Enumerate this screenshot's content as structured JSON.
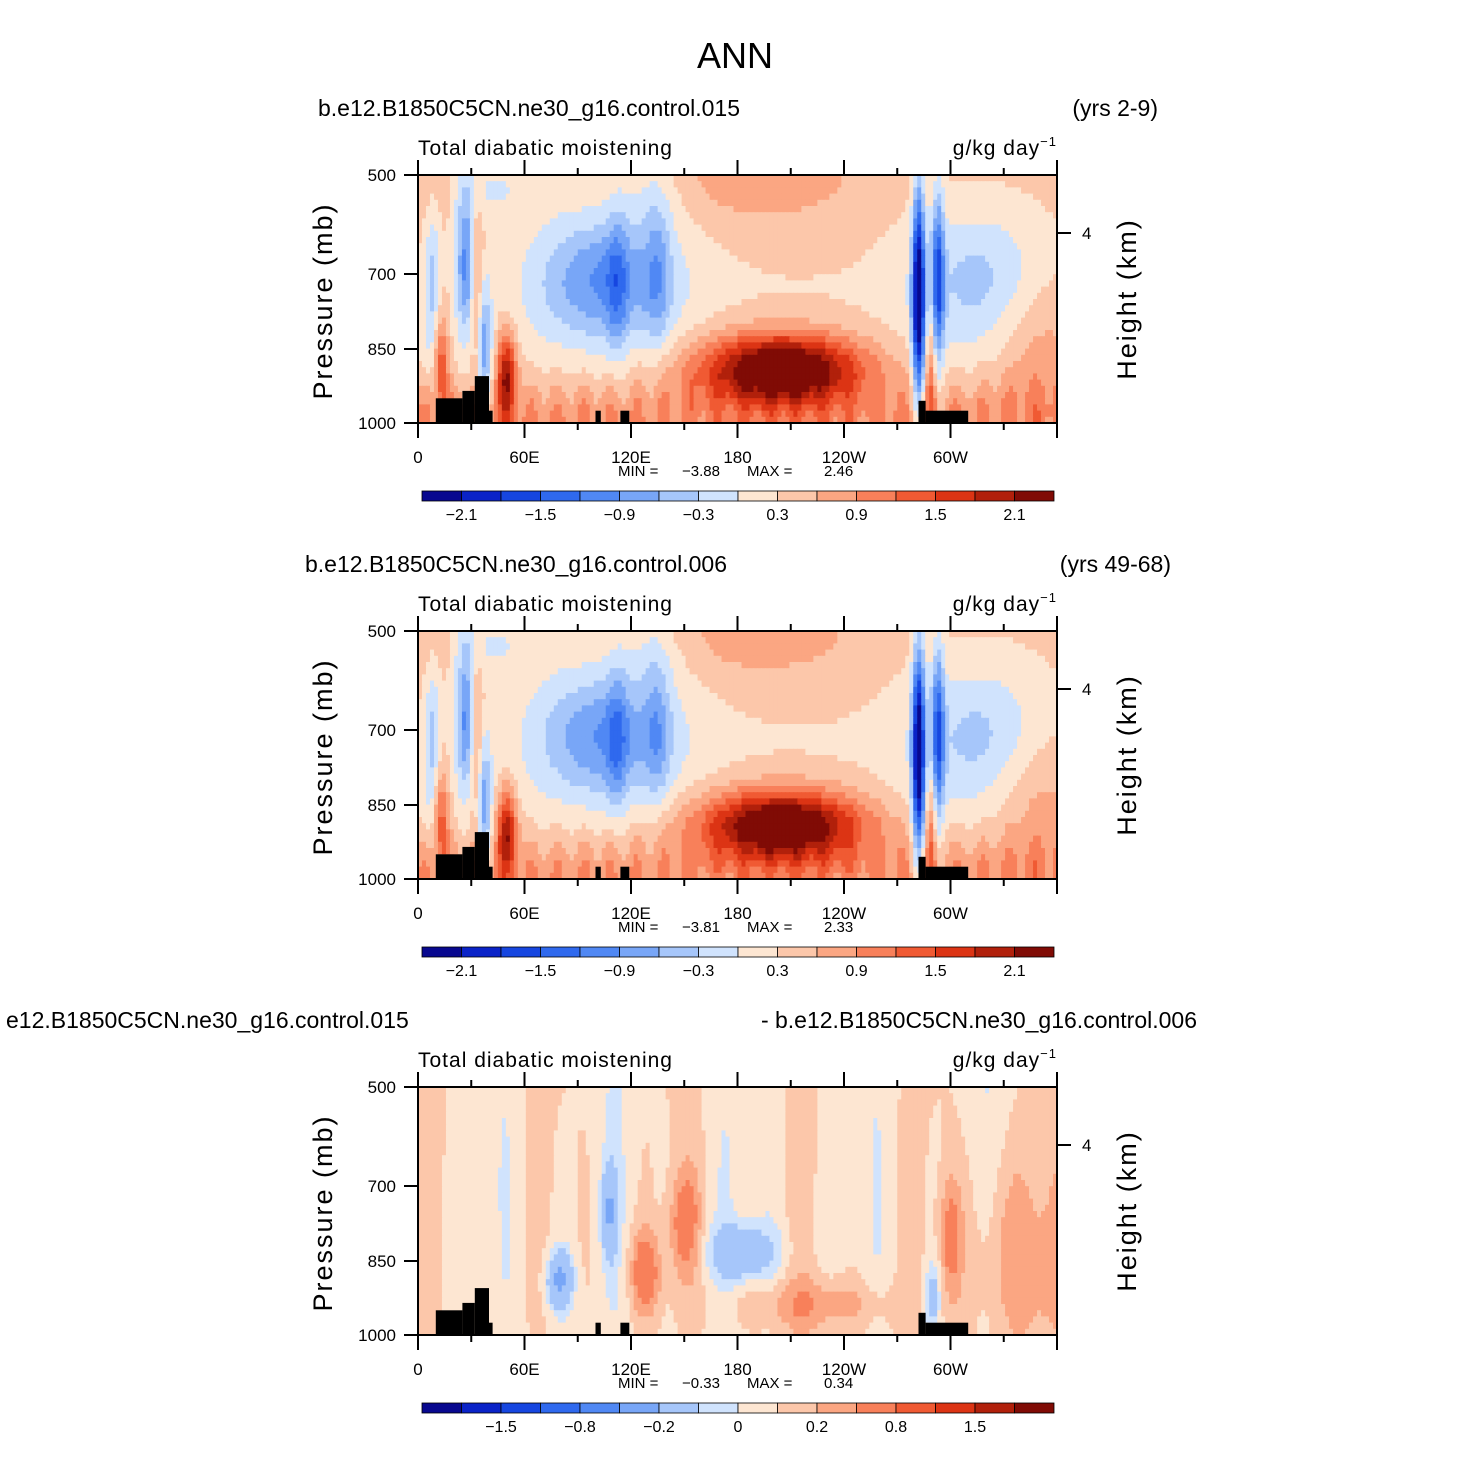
{
  "title": "ANN",
  "colors": {
    "land": "#000000",
    "levels": [
      "#08088f",
      "#0a23c8",
      "#1646e0",
      "#2f69ee",
      "#5088f4",
      "#78a6f7",
      "#a6c6fa",
      "#d0e3fd",
      "#fde6d2",
      "#fcc7aa",
      "#fba682",
      "#f8805a",
      "#f05a33",
      "#dc3414",
      "#b1200b",
      "#800b05"
    ]
  },
  "chart_data": [
    {
      "type": "heatmap",
      "case_title": "b.e12.B1850C5CN.ne30_g16.control.015",
      "years": "(yrs 2-9)",
      "variable": "Total diabatic moistening",
      "units": "g/kg day",
      "units_exp": "−1",
      "ylabel": "Pressure (mb)",
      "ylabel_right": "Height (km)",
      "y_ticks": [
        "500",
        "700",
        "850",
        "1000"
      ],
      "x_ticks": [
        "0",
        "60E",
        "120E",
        "180",
        "120W",
        "60W"
      ],
      "right_ticks": [
        "4"
      ],
      "min_label": "MIN =",
      "min_value": "−3.88",
      "max_label": "MAX =",
      "max_value": "2.46",
      "colorbar_labels": [
        "−2.1",
        "−1.5",
        "−0.9",
        "−0.3",
        "0.3",
        "0.9",
        "1.5",
        "2.1"
      ],
      "scale": 1.0
    },
    {
      "type": "heatmap",
      "case_title": "b.e12.B1850C5CN.ne30_g16.control.006",
      "years": "(yrs 49-68)",
      "variable": "Total diabatic moistening",
      "units": "g/kg day",
      "units_exp": "−1",
      "ylabel": "Pressure (mb)",
      "ylabel_right": "Height (km)",
      "y_ticks": [
        "500",
        "700",
        "850",
        "1000"
      ],
      "x_ticks": [
        "0",
        "60E",
        "120E",
        "180",
        "120W",
        "60W"
      ],
      "right_ticks": [
        "4"
      ],
      "min_label": "MIN =",
      "min_value": "−3.81",
      "max_label": "MAX =",
      "max_value": "2.33",
      "colorbar_labels": [
        "−2.1",
        "−1.5",
        "−0.9",
        "−0.3",
        "0.3",
        "0.9",
        "1.5",
        "2.1"
      ],
      "scale": 0.97
    },
    {
      "type": "heatmap",
      "case_title": "e12.B1850C5CN.ne30_g16.control.015",
      "years": "- b.e12.B1850C5CN.ne30_g16.control.006",
      "variable": "Total diabatic moistening",
      "units": "g/kg day",
      "units_exp": "−1",
      "ylabel": "Pressure (mb)",
      "ylabel_right": "Height (km)",
      "y_ticks": [
        "500",
        "700",
        "850",
        "1000"
      ],
      "x_ticks": [
        "0",
        "60E",
        "120E",
        "180",
        "120W",
        "60W"
      ],
      "right_ticks": [
        "4"
      ],
      "min_label": "MIN =",
      "min_value": "−0.33",
      "max_label": "MAX =",
      "max_value": "0.34",
      "colorbar_labels": [
        "−1.5",
        "−0.8",
        "−0.2",
        "0",
        "0.2",
        "0.8",
        "1.5"
      ],
      "scale": 0.16
    }
  ]
}
